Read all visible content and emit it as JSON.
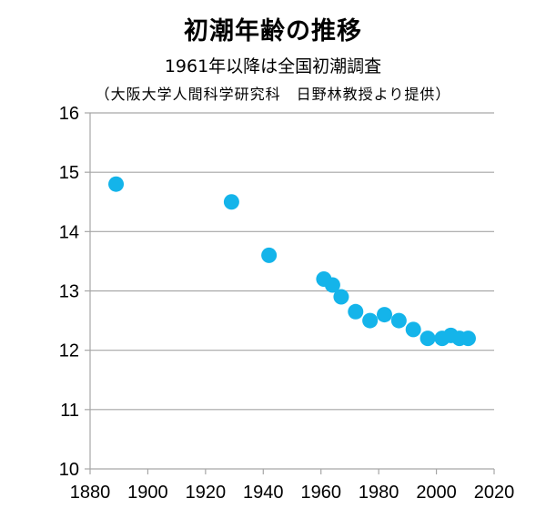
{
  "chart_data": {
    "type": "scatter",
    "title": "初潮年齢の推移",
    "subtitle": "1961年以降は全国初潮調査",
    "note": "（大阪大学人間科学研究科　日野林教授より提供）",
    "xlabel": "",
    "ylabel": "",
    "xlim": [
      1880,
      2020
    ],
    "ylim": [
      10,
      16
    ],
    "x_ticks": [
      1880,
      1900,
      1920,
      1940,
      1960,
      1980,
      2000,
      2020
    ],
    "y_ticks": [
      10,
      11,
      12,
      13,
      14,
      15,
      16
    ],
    "grid": "horizontal",
    "legend": "none",
    "marker_color": "#14b4ea",
    "points": [
      {
        "x": 1889,
        "y": 14.8
      },
      {
        "x": 1929,
        "y": 14.5
      },
      {
        "x": 1942,
        "y": 13.6
      },
      {
        "x": 1961,
        "y": 13.2
      },
      {
        "x": 1964,
        "y": 13.1
      },
      {
        "x": 1967,
        "y": 12.9
      },
      {
        "x": 1972,
        "y": 12.65
      },
      {
        "x": 1977,
        "y": 12.5
      },
      {
        "x": 1982,
        "y": 12.6
      },
      {
        "x": 1987,
        "y": 12.5
      },
      {
        "x": 1992,
        "y": 12.35
      },
      {
        "x": 1997,
        "y": 12.2
      },
      {
        "x": 2002,
        "y": 12.2
      },
      {
        "x": 2005,
        "y": 12.25
      },
      {
        "x": 2008,
        "y": 12.2
      },
      {
        "x": 2011,
        "y": 12.2
      }
    ]
  }
}
